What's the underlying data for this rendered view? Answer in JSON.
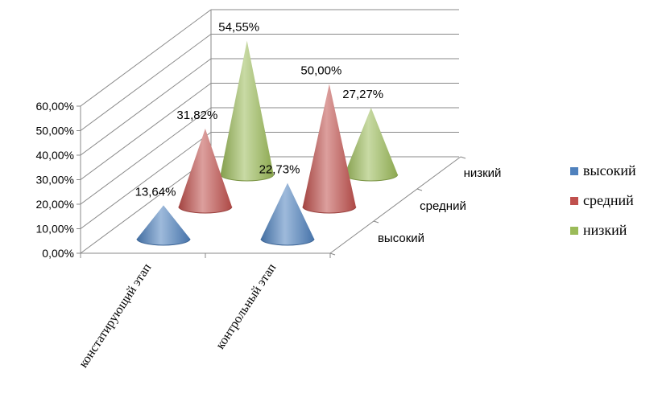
{
  "chart_data": {
    "type": "bar",
    "style": "3d-cone",
    "categories": [
      "констатирующий этап",
      "контрольный этап"
    ],
    "series": [
      {
        "name": "высокий",
        "values": [
          13.64,
          22.73
        ],
        "color": "#4F81BD"
      },
      {
        "name": "средний",
        "values": [
          31.82,
          50.0
        ],
        "color": "#C0504D"
      },
      {
        "name": "низкий",
        "values": [
          54.55,
          27.27
        ],
        "color": "#9BBB59"
      }
    ],
    "data_labels": [
      [
        "13,64%",
        "22,73%"
      ],
      [
        "31,82%",
        "50,00%"
      ],
      [
        "54,55%",
        "27,27%"
      ]
    ],
    "y_ticks": [
      "0,00%",
      "10,00%",
      "20,00%",
      "30,00%",
      "40,00%",
      "50,00%",
      "60,00%"
    ],
    "depth_labels": [
      "высокий",
      "средний",
      "низкий"
    ],
    "ylim": [
      0,
      60
    ],
    "grid": true,
    "legend_position": "right"
  }
}
